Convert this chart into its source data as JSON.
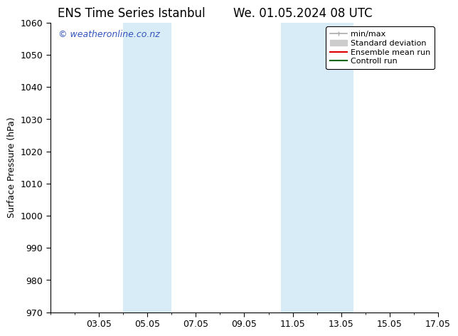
{
  "title_left": "ENS Time Series Istanbul",
  "title_right": "We. 01.05.2024 08 UTC",
  "ylabel": "Surface Pressure (hPa)",
  "ylim": [
    970,
    1060
  ],
  "yticks": [
    970,
    980,
    990,
    1000,
    1010,
    1020,
    1030,
    1040,
    1050,
    1060
  ],
  "xlim": [
    1,
    17
  ],
  "xtick_labels": [
    "03.05",
    "05.05",
    "07.05",
    "09.05",
    "11.05",
    "13.05",
    "15.05",
    "17.05"
  ],
  "xtick_positions": [
    3,
    5,
    7,
    9,
    11,
    13,
    15,
    17
  ],
  "watermark": "© weatheronline.co.nz",
  "watermark_color": "#3355bb",
  "shaded_regions": [
    {
      "xmin": 4.0,
      "xmax": 6.0,
      "color": "#d8ecf8"
    },
    {
      "xmin": 10.5,
      "xmax": 13.5,
      "color": "#d8ecf8"
    }
  ],
  "legend_entries": [
    {
      "label": "min/max",
      "color": "#aaaaaa",
      "lw": 1.2,
      "style": "line_with_caps"
    },
    {
      "label": "Standard deviation",
      "color": "#cccccc",
      "lw": 8,
      "style": "band"
    },
    {
      "label": "Ensemble mean run",
      "color": "#dd0000",
      "lw": 1.5,
      "style": "line"
    },
    {
      "label": "Controll run",
      "color": "#006600",
      "lw": 1.5,
      "style": "line"
    }
  ],
  "bg_color": "#ffffff",
  "plot_bg_color": "#ffffff",
  "tick_color": "#000000",
  "title_fontsize": 12,
  "axis_label_fontsize": 9,
  "tick_fontsize": 9,
  "legend_fontsize": 8
}
